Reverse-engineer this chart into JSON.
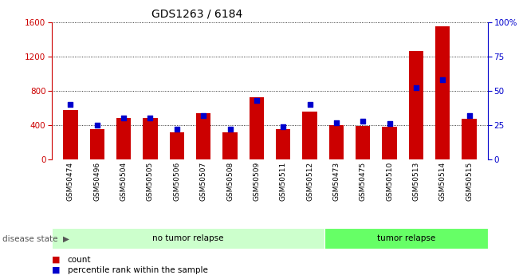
{
  "title": "GDS1263 / 6184",
  "categories": [
    "GSM50474",
    "GSM50496",
    "GSM50504",
    "GSM50505",
    "GSM50506",
    "GSM50507",
    "GSM50508",
    "GSM50509",
    "GSM50511",
    "GSM50512",
    "GSM50473",
    "GSM50475",
    "GSM50510",
    "GSM50513",
    "GSM50514",
    "GSM50515"
  ],
  "counts": [
    580,
    355,
    480,
    480,
    315,
    540,
    320,
    720,
    355,
    560,
    400,
    390,
    380,
    1260,
    1550,
    470
  ],
  "percentiles": [
    40,
    25,
    30,
    30,
    22,
    32,
    22,
    43,
    24,
    40,
    27,
    28,
    26,
    52,
    58,
    32
  ],
  "no_tumor_count": 10,
  "tumor_count": 6,
  "bar_color": "#cc0000",
  "dot_color": "#0000cc",
  "no_tumor_color": "#ccffcc",
  "tumor_color": "#66ff66",
  "tick_color_left": "#cc0000",
  "tick_color_right": "#0000cc",
  "grid_color": "#000000",
  "ylim_left": [
    0,
    1600
  ],
  "ylim_right": [
    0,
    100
  ],
  "yticks_left": [
    0,
    400,
    800,
    1200,
    1600
  ],
  "yticks_right": [
    0,
    25,
    50,
    75,
    100
  ],
  "ytick_labels_right": [
    "0",
    "25",
    "50",
    "75",
    "100%"
  ],
  "xlabel_disease": "disease state",
  "label_no_tumor": "no tumor relapse",
  "label_tumor": "tumor relapse",
  "legend_count": "count",
  "legend_percentile": "percentile rank within the sample",
  "bar_width": 0.55
}
